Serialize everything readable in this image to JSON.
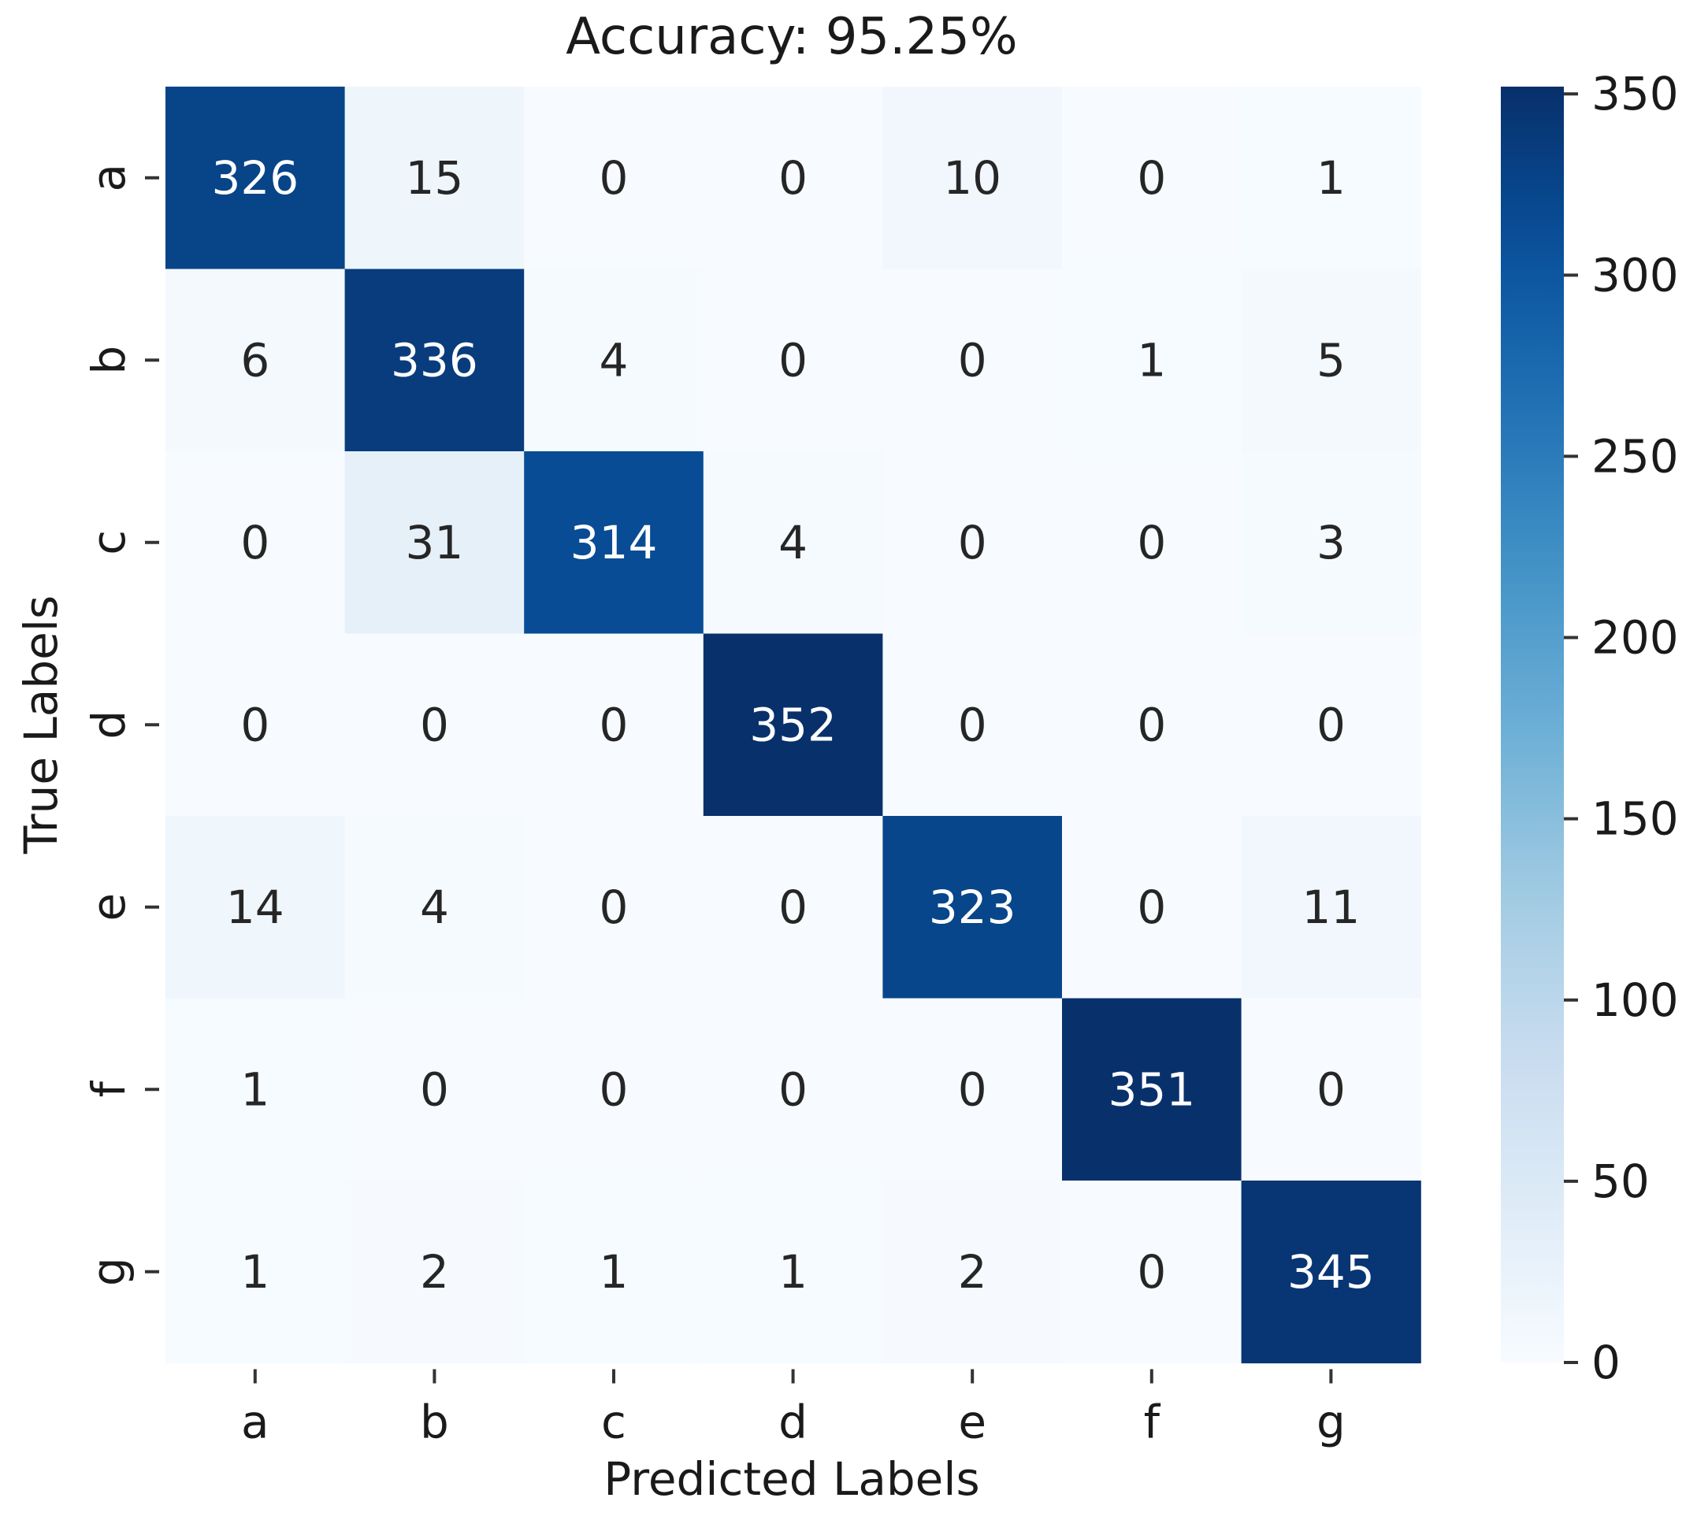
{
  "chart_data": {
    "type": "heatmap",
    "title": "Accuracy: 95.25%",
    "xlabel": "Predicted Labels",
    "ylabel": "True Labels",
    "x_categories": [
      "a",
      "b",
      "c",
      "d",
      "e",
      "f",
      "g"
    ],
    "y_categories": [
      "a",
      "b",
      "c",
      "d",
      "e",
      "f",
      "g"
    ],
    "values": [
      [
        326,
        15,
        0,
        0,
        10,
        0,
        1
      ],
      [
        6,
        336,
        4,
        0,
        0,
        1,
        5
      ],
      [
        0,
        31,
        314,
        4,
        0,
        0,
        3
      ],
      [
        0,
        0,
        0,
        352,
        0,
        0,
        0
      ],
      [
        14,
        4,
        0,
        0,
        323,
        0,
        11
      ],
      [
        1,
        0,
        0,
        0,
        0,
        351,
        0
      ],
      [
        1,
        2,
        1,
        1,
        2,
        0,
        345
      ]
    ],
    "colormap": "Blues",
    "colorbar": {
      "min": 0,
      "max": 352,
      "ticks": [
        0,
        50,
        100,
        150,
        200,
        250,
        300,
        350
      ],
      "tick_labels": [
        "0",
        "50",
        "100",
        "150",
        "200",
        "250",
        "300",
        "350"
      ]
    },
    "colors": {
      "low": "#f7fbff",
      "high": "#08306b",
      "text_dark": "#262626",
      "text_light": "#ffffff"
    }
  }
}
